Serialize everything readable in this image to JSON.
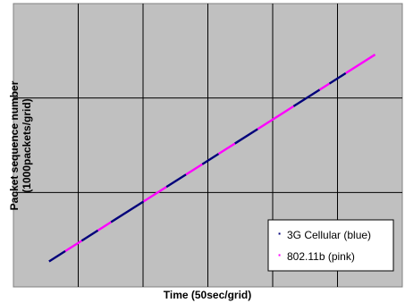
{
  "chart_data": {
    "type": "line",
    "title": "",
    "xlabel": "Time (50sec/grid)",
    "ylabel": "Packet sequence number (1000packets/grid)",
    "ylabel_lines": [
      "Packet sequence number",
      "(1000packets/grid)"
    ],
    "xlim": [
      0,
      6
    ],
    "ylim": [
      0,
      3
    ],
    "grid": true,
    "x_tick_labels": false,
    "y_tick_labels": false,
    "legend": {
      "position": "bottom-right"
    },
    "series": [
      {
        "name": "3G Cellular (blue)",
        "color": "#00007a",
        "legend_marker": "·"
      },
      {
        "name": "802.11b (pink)",
        "color": "#ff00ff",
        "legend_marker": "·"
      }
    ],
    "trace": {
      "x_start": 0.55,
      "y_start": 0.27,
      "x_end": 5.58,
      "y_end": 2.46,
      "segments": [
        {
          "series": 0,
          "from": 0.0,
          "to": 0.05
        },
        {
          "series": 1,
          "from": 0.05,
          "to": 0.1
        },
        {
          "series": 0,
          "from": 0.1,
          "to": 0.15
        },
        {
          "series": 1,
          "from": 0.15,
          "to": 0.19
        },
        {
          "series": 0,
          "from": 0.19,
          "to": 0.29
        },
        {
          "series": 1,
          "from": 0.29,
          "to": 0.36
        },
        {
          "series": 0,
          "from": 0.36,
          "to": 0.42
        },
        {
          "series": 1,
          "from": 0.42,
          "to": 0.47
        },
        {
          "series": 0,
          "from": 0.47,
          "to": 0.52
        },
        {
          "series": 1,
          "from": 0.52,
          "to": 0.57
        },
        {
          "series": 0,
          "from": 0.57,
          "to": 0.64
        },
        {
          "series": 1,
          "from": 0.64,
          "to": 0.75
        },
        {
          "series": 0,
          "from": 0.75,
          "to": 0.83
        },
        {
          "series": 1,
          "from": 0.83,
          "to": 0.86
        },
        {
          "series": 0,
          "from": 0.86,
          "to": 0.91
        },
        {
          "series": 1,
          "from": 0.91,
          "to": 1.0
        }
      ]
    }
  },
  "colors": {
    "plot_background": "#c0c0c0",
    "grid": "#000000"
  }
}
